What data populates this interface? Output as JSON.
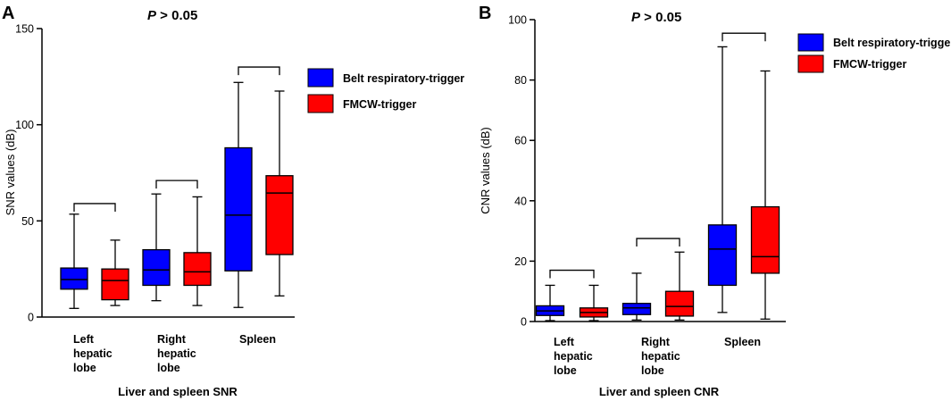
{
  "colors": {
    "belt": "#0000ff",
    "fmcw": "#ff0000",
    "ink": "#000000"
  },
  "chart_data": [
    {
      "type": "box",
      "panel": "A",
      "title": "P > 0.05",
      "title_p": "P",
      "title_rest": " > 0.05",
      "ylabel": "SNR values (dB)",
      "xlabel": "Liver and spleen SNR",
      "ylim": [
        0,
        150
      ],
      "yticks": [
        "0",
        "50",
        "100",
        "150"
      ],
      "ytick_values": [
        0,
        50,
        100,
        150
      ],
      "legend": [
        "Belt respiratory-trigger",
        "FMCW-trigger"
      ],
      "categories": [
        {
          "label_lines": [
            "Left",
            "hepatic",
            "lobe"
          ]
        },
        {
          "label_lines": [
            "Right",
            "hepatic",
            "lobe"
          ]
        },
        {
          "label_lines": [
            "Spleen"
          ]
        }
      ],
      "series": [
        {
          "name": "Belt respiratory-trigger",
          "color_key": "belt",
          "boxes": [
            {
              "min": 4.5,
              "q1": 14.5,
              "median": 19.5,
              "q3": 25.5,
              "max": 53.5
            },
            {
              "min": 8.5,
              "q1": 16.5,
              "median": 24.5,
              "q3": 35,
              "max": 64
            },
            {
              "min": 5,
              "q1": 24,
              "median": 53,
              "q3": 88,
              "max": 122
            }
          ]
        },
        {
          "name": "FMCW-trigger",
          "color_key": "fmcw",
          "boxes": [
            {
              "min": 6,
              "q1": 9,
              "median": 19,
              "q3": 25,
              "max": 40
            },
            {
              "min": 6,
              "q1": 16.5,
              "median": 23.5,
              "q3": 33.5,
              "max": 62.5
            },
            {
              "min": 11,
              "q1": 32.5,
              "median": 64.5,
              "q3": 73.5,
              "max": 117.5
            }
          ]
        }
      ],
      "brackets": [
        {
          "category": 0,
          "value": 59
        },
        {
          "category": 1,
          "value": 71
        },
        {
          "category": 2,
          "value": 130
        }
      ]
    },
    {
      "type": "box",
      "panel": "B",
      "title": "P > 0.05",
      "title_p": "P",
      "title_rest": " > 0.05",
      "ylabel": "CNR values (dB)",
      "xlabel": "Liver and spleen CNR",
      "ylim": [
        0,
        100
      ],
      "yticks": [
        "0",
        "20",
        "40",
        "60",
        "80",
        "100"
      ],
      "ytick_values": [
        0,
        20,
        40,
        60,
        80,
        100
      ],
      "legend": [
        "Belt respiratory-trigger",
        "FMCW-trigger"
      ],
      "categories": [
        {
          "label_lines": [
            "Left",
            "hepatic",
            "lobe"
          ]
        },
        {
          "label_lines": [
            "Right",
            "hepatic",
            "lobe"
          ]
        },
        {
          "label_lines": [
            "Spleen"
          ]
        }
      ],
      "series": [
        {
          "name": "Belt respiratory-trigger",
          "color_key": "belt",
          "boxes": [
            {
              "min": 0.3,
              "q1": 2,
              "median": 3.5,
              "q3": 5.2,
              "max": 12
            },
            {
              "min": 0.5,
              "q1": 2.3,
              "median": 4.5,
              "q3": 6,
              "max": 16
            },
            {
              "min": 3,
              "q1": 12,
              "median": 24,
              "q3": 32,
              "max": 91
            }
          ]
        },
        {
          "name": "FMCW-trigger",
          "color_key": "fmcw",
          "boxes": [
            {
              "min": 0.3,
              "q1": 1.5,
              "median": 3,
              "q3": 4.5,
              "max": 12
            },
            {
              "min": 0.5,
              "q1": 1.8,
              "median": 5,
              "q3": 10,
              "max": 23
            },
            {
              "min": 0.8,
              "q1": 16,
              "median": 21.5,
              "q3": 38,
              "max": 83
            }
          ]
        }
      ],
      "brackets": [
        {
          "category": 0,
          "value": 17
        },
        {
          "category": 1,
          "value": 27.5
        },
        {
          "category": 2,
          "value": 95.5
        }
      ]
    }
  ]
}
